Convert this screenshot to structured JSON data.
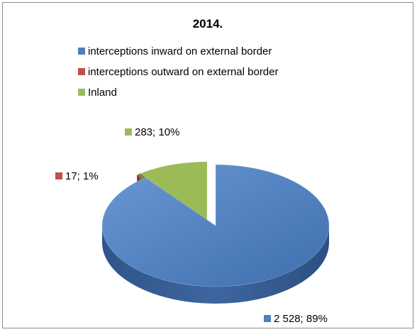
{
  "chart_data": {
    "type": "pie",
    "title": "2014.",
    "legend_position": "top",
    "three_d": true,
    "exploded": true,
    "slices": [
      {
        "name": "interceptions inward on external border",
        "value": 2528,
        "value_label": "2 528",
        "percent": 89,
        "data_label": "2 528; 89%",
        "color": "#4f7fbf"
      },
      {
        "name": "interceptions outward on external border",
        "value": 17,
        "value_label": "17",
        "percent": 1,
        "data_label": "17; 1%",
        "color": "#c0504d"
      },
      {
        "name": "Inland",
        "value": 283,
        "value_label": "283",
        "percent": 10,
        "data_label": "283; 10%",
        "color": "#9bbb59"
      }
    ]
  }
}
